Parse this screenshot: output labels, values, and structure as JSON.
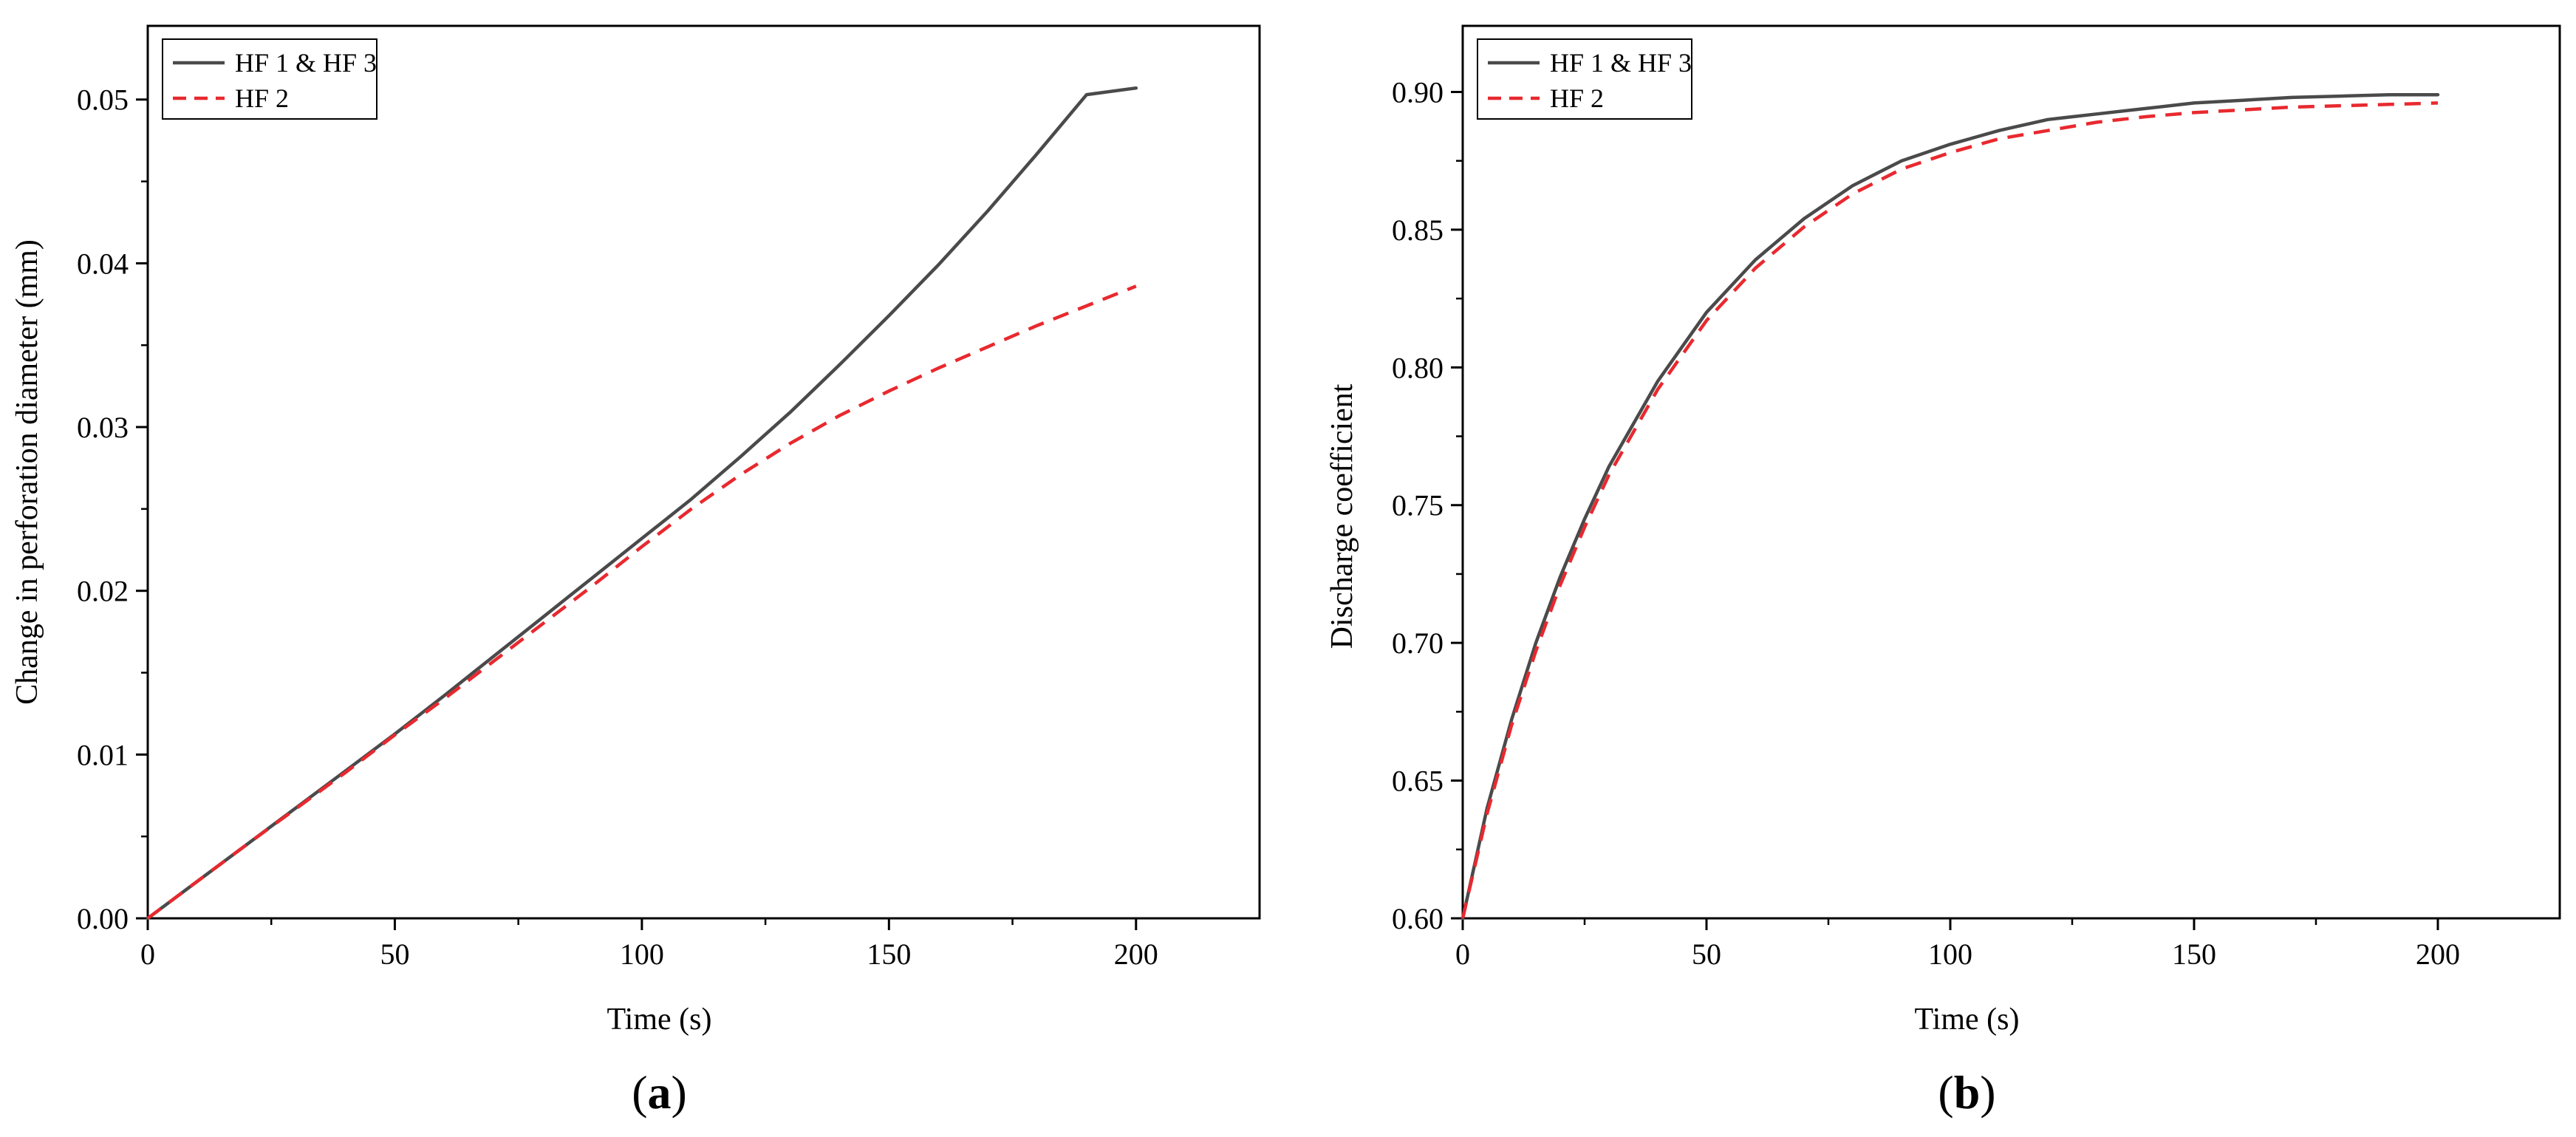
{
  "chart_data": [
    {
      "type": "line",
      "panel_label": "(a)",
      "panel_letter": "a",
      "xlabel": "Time (s)",
      "ylabel": "Change in perforation diameter (mm)",
      "xlim": [
        0,
        225
      ],
      "ylim": [
        0,
        0.0545
      ],
      "xticks": [
        0,
        50,
        100,
        150,
        200
      ],
      "xtick_labels": [
        "0",
        "50",
        "100",
        "150",
        "200"
      ],
      "yticks": [
        0,
        0.01,
        0.02,
        0.03,
        0.04,
        0.05
      ],
      "ytick_labels": [
        "0.00",
        "0.01",
        "0.02",
        "0.03",
        "0.04",
        "0.05"
      ],
      "grid": false,
      "legend_position": "top-left",
      "series": [
        {
          "name": "HF 1 & HF 3",
          "color": "#4a4a4a",
          "dash": "solid",
          "x": [
            0,
            10,
            20,
            30,
            40,
            50,
            60,
            70,
            80,
            90,
            100,
            110,
            120,
            130,
            140,
            150,
            160,
            170,
            180,
            190,
            200
          ],
          "y": [
            0,
            0.00225,
            0.0045,
            0.00675,
            0.009,
            0.01125,
            0.0136,
            0.016,
            0.0184,
            0.0208,
            0.0232,
            0.0256,
            0.0282,
            0.0309,
            0.0338,
            0.0368,
            0.0399,
            0.0432,
            0.0467,
            0.0503,
            0.0507
          ]
        },
        {
          "name": "HF 2",
          "color": "#e8292f",
          "dash": "dashed",
          "x": [
            0,
            10,
            20,
            30,
            40,
            50,
            60,
            70,
            80,
            90,
            100,
            110,
            120,
            130,
            140,
            150,
            160,
            170,
            180,
            190,
            200
          ],
          "y": [
            0,
            0.00225,
            0.0045,
            0.0067,
            0.0089,
            0.0112,
            0.0134,
            0.0157,
            0.018,
            0.0203,
            0.0227,
            0.025,
            0.0271,
            0.029,
            0.0307,
            0.0322,
            0.0336,
            0.0349,
            0.0362,
            0.0374,
            0.0386
          ]
        }
      ]
    },
    {
      "type": "line",
      "panel_label": "(b)",
      "panel_letter": "b",
      "xlabel": "Time (s)",
      "ylabel": "Discharge coefficient",
      "xlim": [
        0,
        225
      ],
      "ylim": [
        0.6,
        0.924
      ],
      "xticks": [
        0,
        50,
        100,
        150,
        200
      ],
      "xtick_labels": [
        "0",
        "50",
        "100",
        "150",
        "200"
      ],
      "yticks": [
        0.6,
        0.65,
        0.7,
        0.75,
        0.8,
        0.85,
        0.9
      ],
      "ytick_labels": [
        "0.60",
        "0.65",
        "0.70",
        "0.75",
        "0.80",
        "0.85",
        "0.90"
      ],
      "grid": false,
      "legend_position": "top-left",
      "series": [
        {
          "name": "HF 1 & HF 3",
          "color": "#4a4a4a",
          "dash": "solid",
          "x": [
            0,
            5,
            10,
            15,
            20,
            25,
            30,
            40,
            50,
            60,
            70,
            80,
            90,
            100,
            110,
            120,
            130,
            140,
            150,
            160,
            170,
            180,
            190,
            200
          ],
          "y": [
            0.6,
            0.64,
            0.672,
            0.7,
            0.724,
            0.745,
            0.764,
            0.795,
            0.82,
            0.839,
            0.854,
            0.866,
            0.875,
            0.881,
            0.886,
            0.89,
            0.892,
            0.894,
            0.896,
            0.897,
            0.898,
            0.8985,
            0.899,
            0.899
          ]
        },
        {
          "name": "HF 2",
          "color": "#e8292f",
          "dash": "dashed",
          "x": [
            0,
            5,
            10,
            15,
            20,
            25,
            30,
            40,
            50,
            60,
            70,
            80,
            90,
            100,
            110,
            120,
            130,
            140,
            150,
            160,
            170,
            180,
            190,
            200
          ],
          "y": [
            0.6,
            0.638,
            0.67,
            0.697,
            0.721,
            0.742,
            0.761,
            0.792,
            0.817,
            0.836,
            0.851,
            0.863,
            0.872,
            0.878,
            0.883,
            0.886,
            0.889,
            0.891,
            0.8925,
            0.8935,
            0.8945,
            0.895,
            0.8955,
            0.896
          ]
        }
      ]
    }
  ]
}
